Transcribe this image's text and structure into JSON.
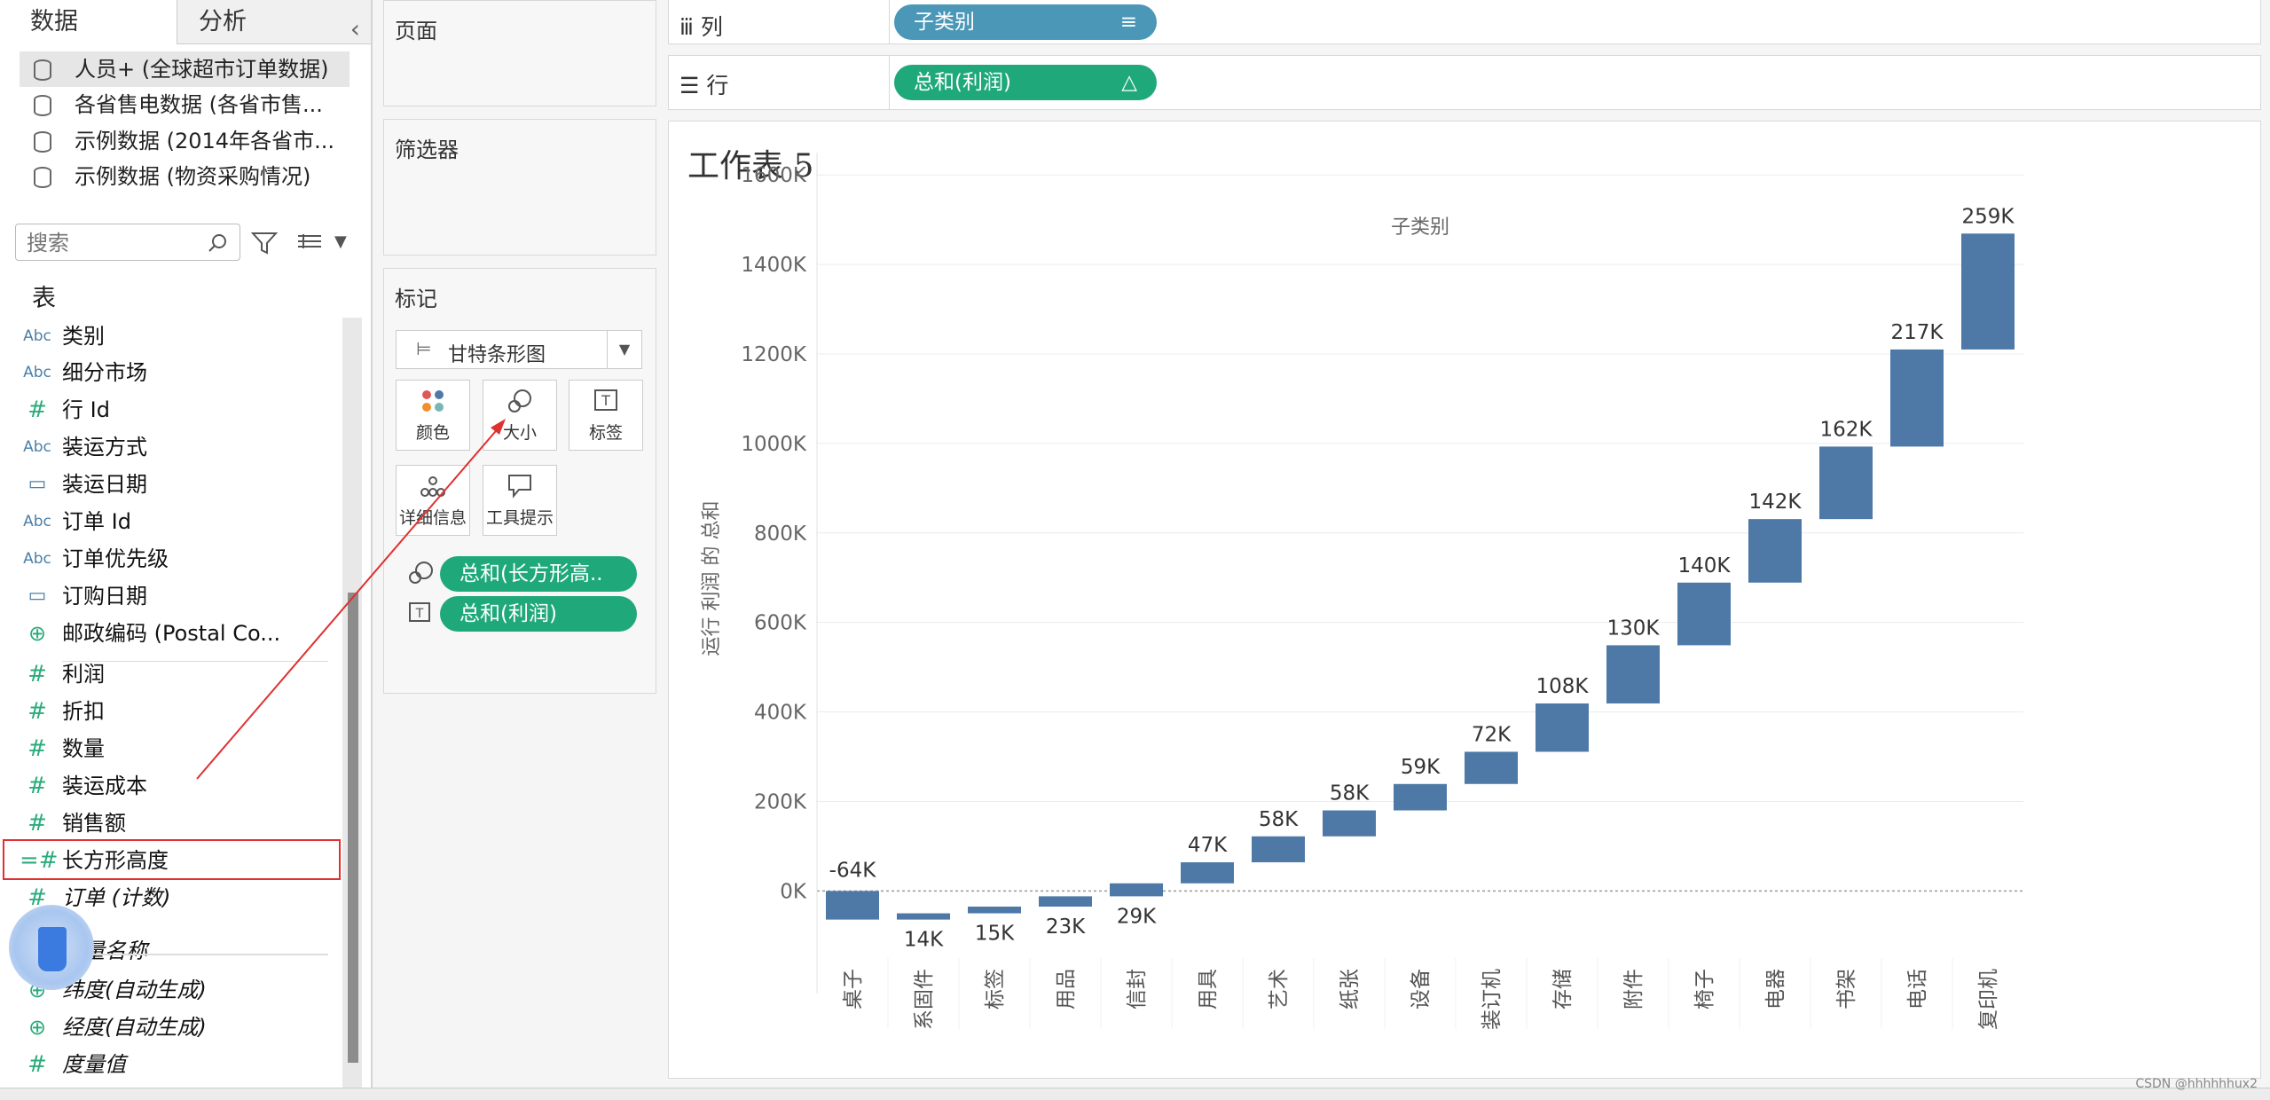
{
  "left_panel": {
    "tab_data": "数据",
    "tab_analysis": "分析",
    "collapse_icon": "chevron-left",
    "datasources": [
      "人员+ (全球超市订单数据)",
      "各省售电数据 (各省市售...",
      "示例数据 (2014年各省市...",
      "示例数据 (物资采购情况)"
    ],
    "search_placeholder": "搜索",
    "section_title": "表",
    "fields": [
      {
        "type": "Abc",
        "name": "类别"
      },
      {
        "type": "Abc",
        "name": "细分市场"
      },
      {
        "type": "#",
        "name": "行 Id"
      },
      {
        "type": "Abc",
        "name": "装运方式"
      },
      {
        "type": "date",
        "name": "装运日期"
      },
      {
        "type": "Abc",
        "name": "订单 Id"
      },
      {
        "type": "Abc",
        "name": "订单优先级"
      },
      {
        "type": "date",
        "name": "订购日期"
      },
      {
        "type": "geo",
        "name": "邮政编码 (Postal Co..."
      },
      {
        "type": "#",
        "name": "利润"
      },
      {
        "type": "#",
        "name": "折扣"
      },
      {
        "type": "#",
        "name": "数量"
      },
      {
        "type": "#",
        "name": "装运成本"
      },
      {
        "type": "#",
        "name": "销售额"
      },
      {
        "type": "=#",
        "name": "长方形高度"
      },
      {
        "type": "#",
        "name": "订单 (计数)"
      },
      {
        "type": "Abc",
        "name": "度量名称"
      },
      {
        "type": "geo",
        "name": "纬度(自动生成)"
      },
      {
        "type": "geo",
        "name": "经度(自动生成)"
      },
      {
        "type": "#",
        "name": "度量值"
      }
    ]
  },
  "middle_panel": {
    "pages_title": "页面",
    "filters_title": "筛选器",
    "marks_title": "标记",
    "mark_type": "甘特条形图",
    "buttons": [
      "颜色",
      "大小",
      "标签",
      "详细信息",
      "工具提示"
    ],
    "mark_pills": [
      "总和(长方形高..",
      "总和(利润)"
    ]
  },
  "shelves": {
    "columns_label": "列",
    "columns_pill": "子类别",
    "rows_label": "行",
    "rows_pill": "总和(利润)",
    "rows_pill_icon": "△"
  },
  "sheet": {
    "title": "工作表 5"
  },
  "chart_data": {
    "type": "bar",
    "subtype": "waterfall",
    "title": "子类别",
    "ylabel": "运行 利润 的 总和",
    "xlabel": "",
    "ylim": [
      -150,
      1650
    ],
    "yticks": [
      0,
      200,
      400,
      600,
      800,
      1000,
      1200,
      1400,
      1600
    ],
    "ytick_labels": [
      "0K",
      "200K",
      "400K",
      "600K",
      "800K",
      "1000K",
      "1200K",
      "1400K",
      "1600K"
    ],
    "categories": [
      "桌子",
      "系固件",
      "标签",
      "用品",
      "信封",
      "用具",
      "艺术",
      "纸张",
      "设备",
      "装订机",
      "存储",
      "附件",
      "椅子",
      "电器",
      "书架",
      "电话",
      "复印机"
    ],
    "values": [
      -64,
      14,
      15,
      23,
      29,
      47,
      58,
      58,
      59,
      72,
      108,
      130,
      140,
      142,
      162,
      217,
      259
    ],
    "value_labels": [
      "-64K",
      "14K",
      "15K",
      "23K",
      "29K",
      "47K",
      "58K",
      "58K",
      "59K",
      "72K",
      "108K",
      "130K",
      "140K",
      "142K",
      "162K",
      "217K",
      "259K"
    ],
    "bar_color": "#4e79a7",
    "grid": true
  },
  "watermark": "CSDN @hhhhhhux2"
}
